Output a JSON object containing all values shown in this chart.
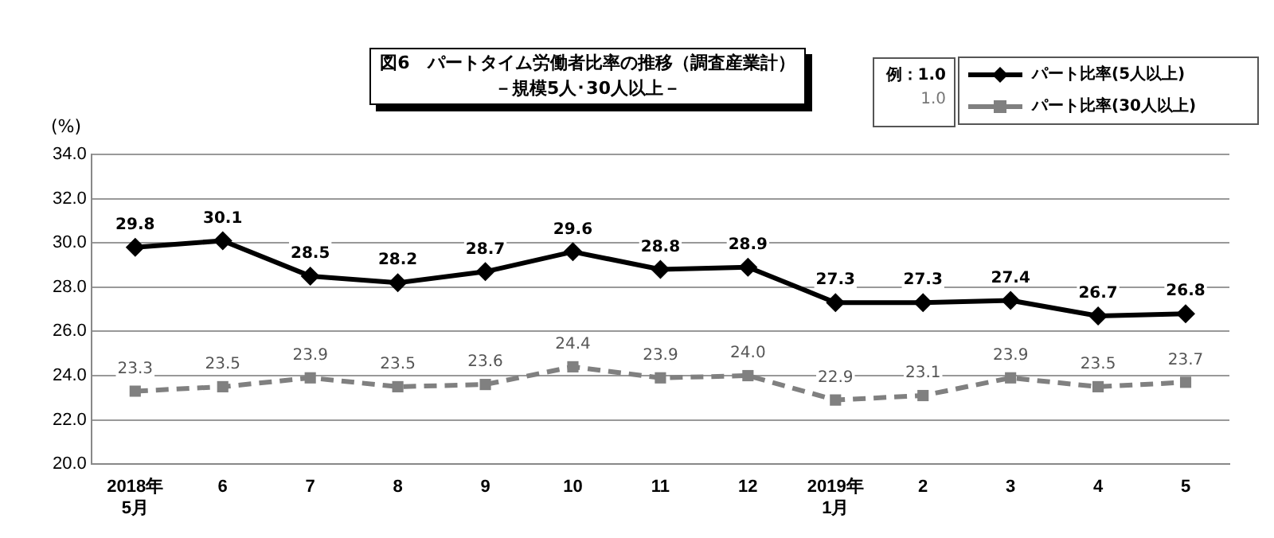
{
  "chart_data": {
    "type": "line",
    "title": "図6　パートタイム労働者比率の推移（調査産業計）",
    "subtitle": "－規模5人･30人以上－",
    "ylabel": "(%)",
    "categories": [
      "2018年\n5月",
      "6",
      "7",
      "8",
      "9",
      "10",
      "11",
      "12",
      "2019年\n1月",
      "2",
      "3",
      "4",
      "5"
    ],
    "series": [
      {
        "name": "パート比率(5人以上)",
        "color": "#000000",
        "marker": "diamond",
        "line_style": "solid",
        "values": [
          29.8,
          30.1,
          28.5,
          28.2,
          28.7,
          29.6,
          28.8,
          28.9,
          27.3,
          27.3,
          27.4,
          26.7,
          26.8
        ],
        "value_labels": [
          "29.8",
          "30.1",
          "28.5",
          "28.2",
          "28.7",
          "29.6",
          "28.8",
          "28.9",
          "27.3",
          "27.3",
          "27.4",
          "26.7",
          "26.8"
        ]
      },
      {
        "name": "パート比率(30人以上)",
        "color": "#808080",
        "marker": "square",
        "line_style": "dashed",
        "values": [
          23.3,
          23.5,
          23.9,
          23.5,
          23.6,
          24.4,
          23.9,
          24.0,
          22.9,
          23.1,
          23.9,
          23.5,
          23.7
        ],
        "value_labels": [
          "23.3",
          "23.5",
          "23.9",
          "23.5",
          "23.6",
          "24.4",
          "23.9",
          "24.0",
          "22.9",
          "23.1",
          "23.9",
          "23.5",
          "23.7"
        ]
      }
    ],
    "ylim": [
      20,
      34
    ],
    "yticks": [
      {
        "value": 20,
        "label": "20.0"
      },
      {
        "value": 22,
        "label": "22.0"
      },
      {
        "value": 24,
        "label": "24.0"
      },
      {
        "value": 26,
        "label": "26.0"
      },
      {
        "value": 28,
        "label": "28.0"
      },
      {
        "value": 30,
        "label": "30.0"
      },
      {
        "value": 32,
        "label": "32.0"
      },
      {
        "value": 34,
        "label": "34.0"
      }
    ],
    "grid": "y",
    "legend": "top right",
    "annotations": [
      "例：1.0",
      "1.0"
    ]
  }
}
